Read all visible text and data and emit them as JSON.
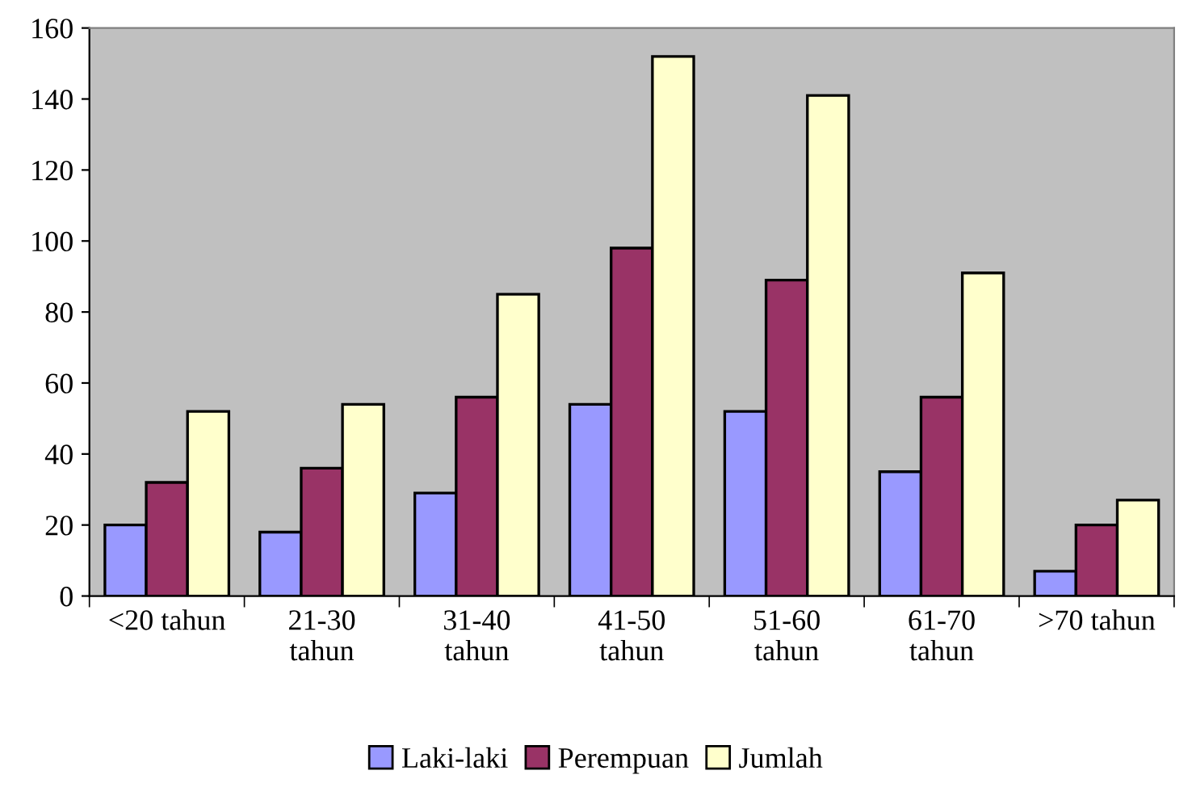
{
  "chart_data": {
    "type": "bar",
    "categories": [
      "<20 tahun",
      "21-30\ntahun",
      "31-40\ntahun",
      "41-50\ntahun",
      "51-60\ntahun",
      "61-70\ntahun",
      ">70 tahun"
    ],
    "series": [
      {
        "name": "Laki-laki",
        "color": "#9999ff",
        "values": [
          20,
          18,
          29,
          54,
          52,
          35,
          7
        ]
      },
      {
        "name": "Perempuan",
        "color": "#993366",
        "values": [
          32,
          36,
          56,
          98,
          89,
          56,
          20
        ]
      },
      {
        "name": "Jumlah",
        "color": "#ffffcc",
        "values": [
          52,
          54,
          85,
          152,
          141,
          91,
          27
        ]
      }
    ],
    "ylim": [
      0,
      160
    ],
    "yticks": [
      0,
      20,
      40,
      60,
      80,
      100,
      120,
      140,
      160
    ],
    "grid": false,
    "legend": "bottom"
  }
}
